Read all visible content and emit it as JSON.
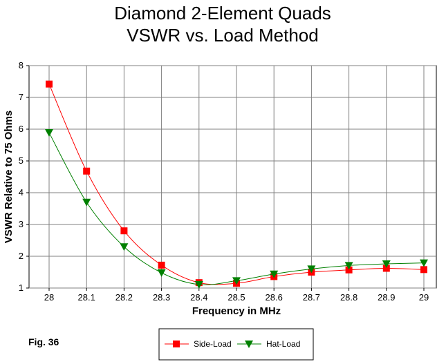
{
  "figure_label": "Fig. 36",
  "chart_data": {
    "type": "line",
    "title_lines": [
      "Diamond 2-Element Quads",
      "VSWR vs. Load Method"
    ],
    "xlabel": "Frequency in MHz",
    "ylabel": "VSWR Relative to 75 Ohms",
    "x": [
      28,
      28.1,
      28.2,
      28.3,
      28.4,
      28.5,
      28.6,
      28.7,
      28.8,
      28.9,
      29
    ],
    "x_tick_labels": [
      "28",
      "28.1",
      "28.2",
      "28.3",
      "28.4",
      "28.5",
      "28.6",
      "28.7",
      "28.8",
      "28.9",
      "29"
    ],
    "y_ticks": [
      1,
      2,
      3,
      4,
      5,
      6,
      7,
      8
    ],
    "y_tick_labels": [
      "1",
      "2",
      "3",
      "4",
      "5",
      "6",
      "7",
      "8"
    ],
    "xlim": [
      28,
      29
    ],
    "ylim": [
      1,
      8
    ],
    "grid": true,
    "legend_placement": "bottom-center",
    "series": [
      {
        "name": "Side-Load",
        "color": "#ff0000",
        "marker": "square",
        "values": [
          7.42,
          4.68,
          2.8,
          1.72,
          1.17,
          1.15,
          1.36,
          1.5,
          1.57,
          1.62,
          1.58
        ]
      },
      {
        "name": "Hat-Load",
        "color": "#008000",
        "marker": "triangle-down",
        "values": [
          5.89,
          3.7,
          2.3,
          1.48,
          1.11,
          1.23,
          1.44,
          1.6,
          1.71,
          1.76,
          1.79
        ]
      }
    ]
  }
}
